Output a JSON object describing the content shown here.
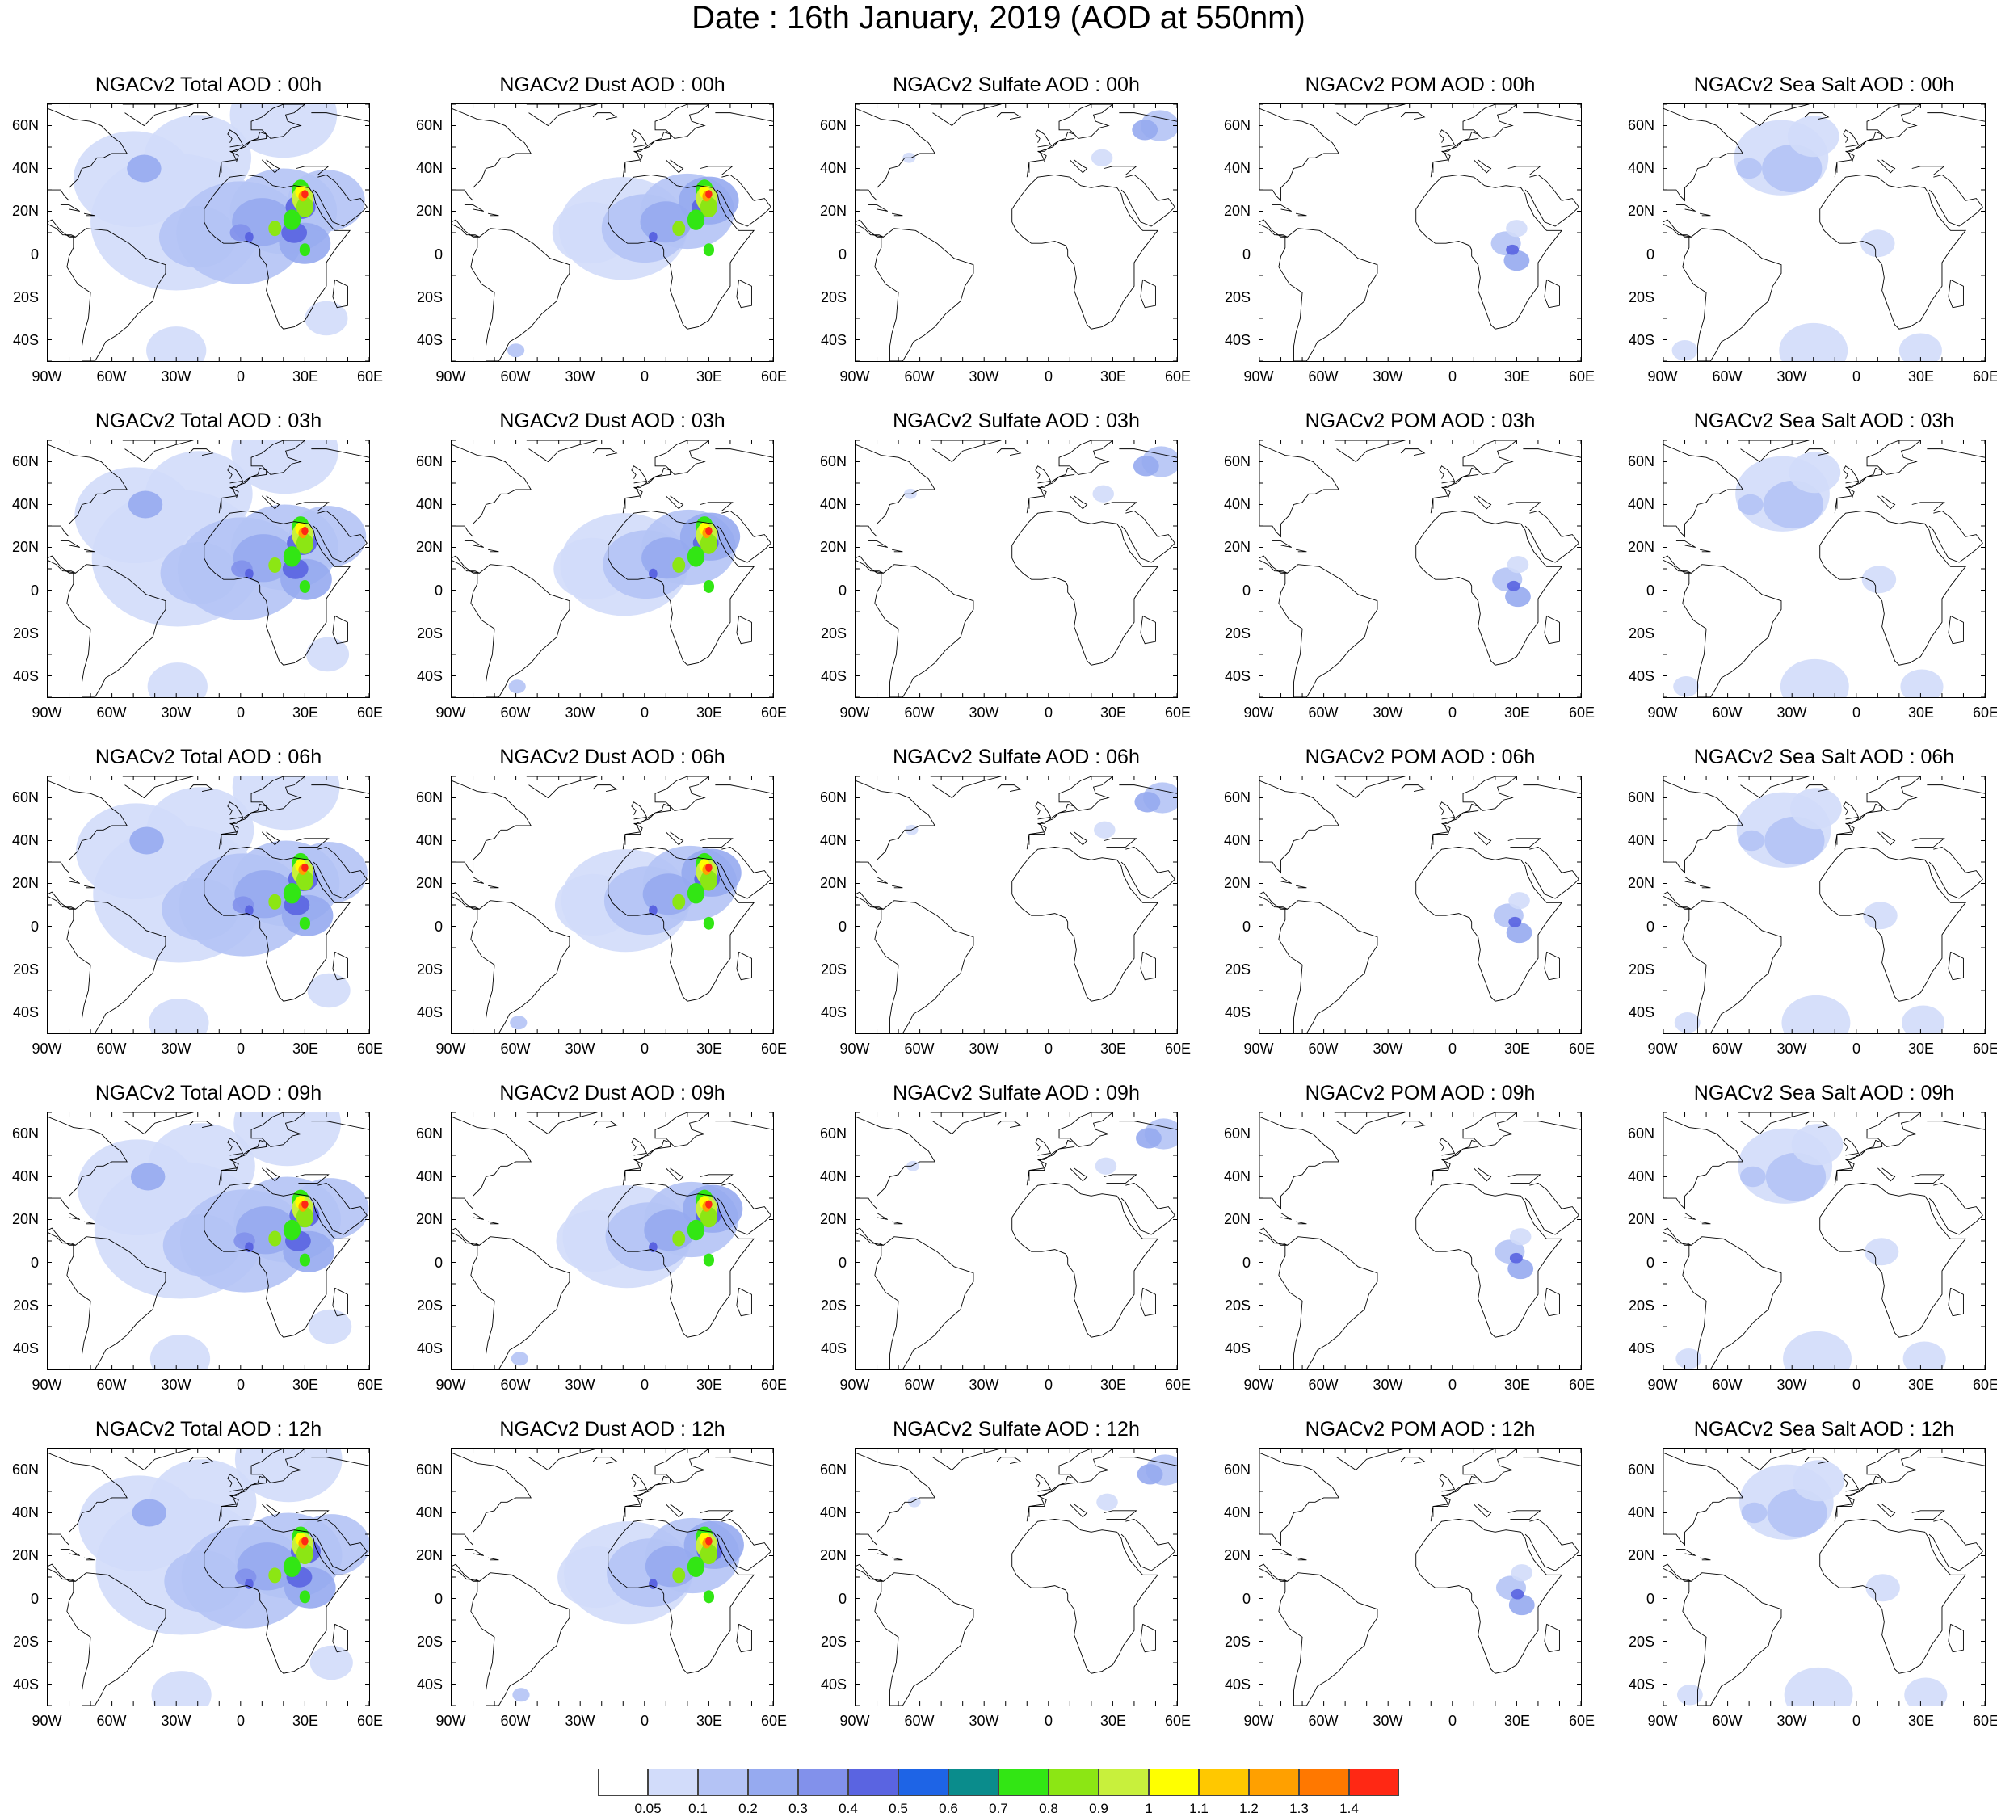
{
  "title": "Date : 16th January, 2019 (AOD at 550nm)",
  "species": [
    "Total",
    "Dust",
    "Sulfate",
    "POM",
    "Sea Salt"
  ],
  "hours": [
    "00h",
    "03h",
    "06h",
    "09h",
    "12h"
  ],
  "panel_titles": [
    [
      "NGACv2 Total AOD : 00h",
      "NGACv2 Dust AOD : 00h",
      "NGACv2 Sulfate AOD : 00h",
      "NGACv2 POM AOD : 00h",
      "NGACv2 Sea Salt AOD : 00h"
    ],
    [
      "NGACv2 Total AOD : 03h",
      "NGACv2 Dust AOD : 03h",
      "NGACv2 Sulfate AOD : 03h",
      "NGACv2 POM AOD : 03h",
      "NGACv2 Sea Salt AOD : 03h"
    ],
    [
      "NGACv2 Total AOD : 06h",
      "NGACv2 Dust AOD : 06h",
      "NGACv2 Sulfate AOD : 06h",
      "NGACv2 POM AOD : 06h",
      "NGACv2 Sea Salt AOD : 06h"
    ],
    [
      "NGACv2 Total AOD : 09h",
      "NGACv2 Dust AOD : 09h",
      "NGACv2 Sulfate AOD : 09h",
      "NGACv2 POM AOD : 09h",
      "NGACv2 Sea Salt  AOD : 09h"
    ],
    [
      "NGACv2 Total AOD  : 12h",
      "NGACv2 Dust AOD : 12h",
      "NGACv2 Sulfate AOD : 12h",
      "NGACv2 POM  AOD : 12h",
      "NGACv2 Sea Salt  AOD : 12h"
    ]
  ],
  "lat_labels": [
    "60N",
    "40N",
    "20N",
    "0",
    "20S",
    "40S"
  ],
  "lon_labels": [
    "90W",
    "60W",
    "30W",
    "0",
    "30E",
    "60E"
  ],
  "colorbar": {
    "labels": [
      "0.05",
      "0.1",
      "0.2",
      "0.3",
      "0.4",
      "0.5",
      "0.6",
      "0.7",
      "0.8",
      "0.9",
      "1",
      "1.1",
      "1.2",
      "1.3",
      "1.4"
    ],
    "colors": [
      "#ffffff",
      "#d2dcfa",
      "#b4c3f5",
      "#96aaf0",
      "#8291eb",
      "#5a64e1",
      "#1e64e6",
      "#0a8c8c",
      "#32e614",
      "#8ce614",
      "#c8f03c",
      "#ffff00",
      "#ffc800",
      "#ffa000",
      "#ff7800",
      "#ff2814"
    ]
  },
  "map_domain": {
    "lon_min": -90,
    "lon_max": 60,
    "lat_min": -50,
    "lat_max": 70
  }
}
